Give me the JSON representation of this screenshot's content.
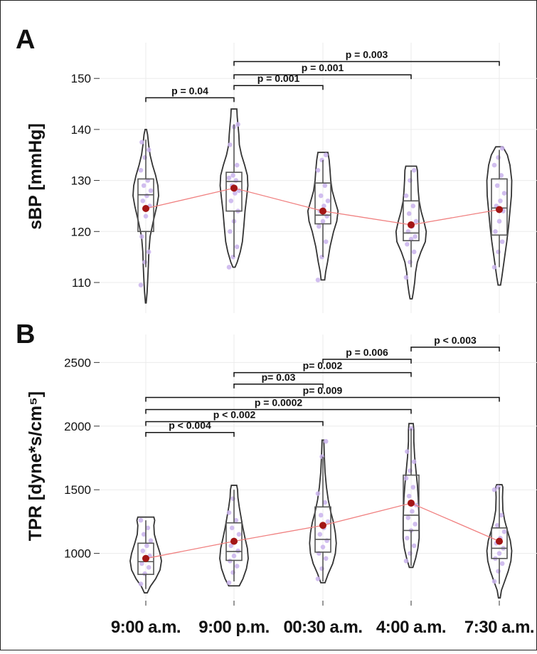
{
  "colors": {
    "violin_outline": "#333333",
    "box": "#555555",
    "points": "#c9b3ec",
    "mean_point": "#a31515",
    "mean_line": "#f08080",
    "grid": "#ebebeb"
  },
  "chart_data": [
    {
      "panel": "A",
      "type": "violin",
      "ylabel": "sBP [mmHg]",
      "xlabel": "",
      "ylim": [
        104,
        157
      ],
      "yticks": [
        110,
        120,
        130,
        140,
        150
      ],
      "yticklabels": [
        "110",
        "120",
        "130",
        "140",
        "150"
      ],
      "categories": [
        "9:00 a.m.",
        "9:00 p.m.",
        "00:30 a.m.",
        "4:00 a.m.",
        "7:30 a.m."
      ],
      "groups": [
        {
          "category": "9:00 a.m.",
          "min": 106,
          "max": 140,
          "q1": 120,
          "median": 127.2,
          "q3": 130.3,
          "whisker_low": 113,
          "whisker_high": 138,
          "mean": 124.5,
          "density": [
            [
              106,
              0.02
            ],
            [
              108,
              0.07
            ],
            [
              110,
              0.1
            ],
            [
              113,
              0.14
            ],
            [
              116,
              0.17
            ],
            [
              119,
              0.24
            ],
            [
              122,
              0.42
            ],
            [
              125,
              0.62
            ],
            [
              127,
              0.72
            ],
            [
              129,
              0.68
            ],
            [
              131,
              0.55
            ],
            [
              133,
              0.38
            ],
            [
              135,
              0.24
            ],
            [
              137,
              0.16
            ],
            [
              139,
              0.1
            ],
            [
              140,
              0.04
            ]
          ],
          "points": [
            109.5,
            114,
            116,
            119,
            123,
            125,
            126,
            127,
            128,
            129,
            130,
            132,
            134.5,
            136,
            137.5
          ]
        },
        {
          "category": "9:00 p.m.",
          "min": 113,
          "max": 144,
          "q1": 124,
          "median": 129.8,
          "q3": 131.6,
          "whisker_low": 115,
          "whisker_high": 141,
          "mean": 128.5,
          "density": [
            [
              113,
              0.06
            ],
            [
              114,
              0.18
            ],
            [
              116,
              0.35
            ],
            [
              118,
              0.47
            ],
            [
              121,
              0.55
            ],
            [
              124,
              0.62
            ],
            [
              127,
              0.72
            ],
            [
              129,
              0.78
            ],
            [
              131,
              0.75
            ],
            [
              133,
              0.6
            ],
            [
              135,
              0.42
            ],
            [
              137,
              0.3
            ],
            [
              139,
              0.27
            ],
            [
              141,
              0.22
            ],
            [
              142.5,
              0.18
            ],
            [
              144,
              0.16
            ]
          ],
          "points": [
            113,
            115,
            117,
            120,
            122,
            124,
            126,
            127.5,
            128,
            129,
            130,
            130.5,
            131,
            133,
            137,
            140.5,
            141
          ]
        },
        {
          "category": "00:30 a.m.",
          "min": 110.5,
          "max": 135.5,
          "q1": 121.5,
          "median": 123.2,
          "q3": 129.5,
          "whisker_low": 115,
          "whisker_high": 134,
          "mean": 124,
          "density": [
            [
              110.5,
              0.1
            ],
            [
              112,
              0.15
            ],
            [
              114,
              0.26
            ],
            [
              117,
              0.4
            ],
            [
              120,
              0.6
            ],
            [
              122,
              0.78
            ],
            [
              124,
              0.85
            ],
            [
              126,
              0.68
            ],
            [
              128,
              0.52
            ],
            [
              130,
              0.44
            ],
            [
              132,
              0.4
            ],
            [
              134,
              0.35
            ],
            [
              135.5,
              0.28
            ]
          ],
          "points": [
            110.5,
            115,
            118,
            121,
            122,
            123,
            124,
            125,
            126,
            127,
            129,
            132,
            134,
            135
          ]
        },
        {
          "category": "4:00 a.m.",
          "min": 106.8,
          "max": 132.8,
          "q1": 118.2,
          "median": 119.7,
          "q3": 126,
          "whisker_low": 113,
          "whisker_high": 132,
          "mean": 121.3,
          "density": [
            [
              106.8,
              0.06
            ],
            [
              108,
              0.12
            ],
            [
              110,
              0.2
            ],
            [
              112,
              0.25
            ],
            [
              114,
              0.35
            ],
            [
              116,
              0.55
            ],
            [
              118,
              0.8
            ],
            [
              120,
              0.85
            ],
            [
              122,
              0.72
            ],
            [
              124,
              0.56
            ],
            [
              126,
              0.45
            ],
            [
              128,
              0.4
            ],
            [
              130,
              0.37
            ],
            [
              132,
              0.35
            ],
            [
              132.8,
              0.3
            ]
          ],
          "points": [
            111,
            114,
            116,
            117.5,
            118.5,
            119,
            120,
            121,
            122,
            123.5,
            125,
            127,
            130,
            132
          ]
        },
        {
          "category": "7:30 a.m.",
          "min": 109.5,
          "max": 136.6,
          "q1": 119.3,
          "median": 124.6,
          "q3": 130.3,
          "whisker_low": 113,
          "whisker_high": 136,
          "mean": 124.3,
          "density": [
            [
              109.5,
              0.07
            ],
            [
              111,
              0.14
            ],
            [
              113,
              0.22
            ],
            [
              115,
              0.3
            ],
            [
              118,
              0.42
            ],
            [
              121,
              0.52
            ],
            [
              124,
              0.6
            ],
            [
              127,
              0.68
            ],
            [
              130,
              0.7
            ],
            [
              133,
              0.6
            ],
            [
              135,
              0.45
            ],
            [
              136.6,
              0.2
            ]
          ],
          "points": [
            113,
            116,
            118,
            120,
            122,
            124,
            125,
            126,
            127.5,
            129,
            131,
            133,
            134.5,
            136.3
          ]
        }
      ],
      "comparisons": [
        {
          "from": "9:00 a.m.",
          "to": "9:00 p.m.",
          "y": 146.2,
          "label": "p = 0.04"
        },
        {
          "from": "9:00 p.m.",
          "to": "00:30 a.m.",
          "y": 148.6,
          "label": "p = 0.001"
        },
        {
          "from": "9:00 p.m.",
          "to": "4:00 a.m.",
          "y": 150.7,
          "label": "p = 0.001"
        },
        {
          "from": "9:00 p.m.",
          "to": "7:30 a.m.",
          "y": 153.3,
          "label": "p = 0.003"
        }
      ]
    },
    {
      "panel": "B",
      "type": "violin",
      "ylabel": "TPR [dyne*s/cm⁵]",
      "xlabel": "",
      "ylim": [
        640,
        2720
      ],
      "yticks": [
        1000,
        1500,
        2000,
        2500
      ],
      "yticklabels": [
        "1000",
        "1500",
        "2000",
        "2500"
      ],
      "categories": [
        "9:00 a.m.",
        "9:00 p.m.",
        "00:30 a.m.",
        "4:00 a.m.",
        "7:30 a.m."
      ],
      "groups": [
        {
          "category": "9:00 a.m.",
          "min": 690,
          "max": 1285,
          "q1": 835,
          "median": 935,
          "q3": 1080,
          "whisker_low": 720,
          "whisker_high": 1260,
          "mean": 960,
          "density": [
            [
              690,
              0.08
            ],
            [
              740,
              0.25
            ],
            [
              800,
              0.55
            ],
            [
              870,
              0.8
            ],
            [
              940,
              0.88
            ],
            [
              1000,
              0.8
            ],
            [
              1080,
              0.62
            ],
            [
              1150,
              0.48
            ],
            [
              1220,
              0.45
            ],
            [
              1260,
              0.5
            ],
            [
              1285,
              0.45
            ]
          ],
          "points": [
            760,
            840,
            890,
            920,
            950,
            980,
            1020,
            1060,
            1100,
            1150,
            1200,
            1260
          ]
        },
        {
          "category": "9:00 p.m.",
          "min": 745,
          "max": 1535,
          "q1": 945,
          "median": 1015,
          "q3": 1240,
          "whisker_low": 780,
          "whisker_high": 1500,
          "mean": 1095,
          "density": [
            [
              745,
              0.3
            ],
            [
              800,
              0.5
            ],
            [
              880,
              0.7
            ],
            [
              960,
              0.8
            ],
            [
              1040,
              0.75
            ],
            [
              1120,
              0.62
            ],
            [
              1200,
              0.5
            ],
            [
              1280,
              0.4
            ],
            [
              1360,
              0.3
            ],
            [
              1440,
              0.22
            ],
            [
              1500,
              0.2
            ],
            [
              1535,
              0.15
            ]
          ],
          "points": [
            770,
            850,
            900,
            940,
            980,
            1020,
            1060,
            1100,
            1150,
            1200,
            1260,
            1320,
            1430
          ]
        },
        {
          "category": "00:30 a.m.",
          "min": 770,
          "max": 1890,
          "q1": 1010,
          "median": 1110,
          "q3": 1365,
          "whisker_low": 780,
          "whisker_high": 1760,
          "mean": 1220,
          "density": [
            [
              770,
              0.12
            ],
            [
              840,
              0.3
            ],
            [
              920,
              0.55
            ],
            [
              1000,
              0.7
            ],
            [
              1080,
              0.75
            ],
            [
              1160,
              0.7
            ],
            [
              1240,
              0.6
            ],
            [
              1320,
              0.45
            ],
            [
              1420,
              0.3
            ],
            [
              1520,
              0.2
            ],
            [
              1640,
              0.12
            ],
            [
              1760,
              0.08
            ],
            [
              1890,
              0.05
            ]
          ],
          "points": [
            800,
            880,
            960,
            1000,
            1050,
            1100,
            1150,
            1200,
            1250,
            1300,
            1400,
            1470,
            1760,
            1880
          ]
        },
        {
          "category": "4:00 a.m.",
          "min": 890,
          "max": 2020,
          "q1": 1180,
          "median": 1300,
          "q3": 1615,
          "whisker_low": 900,
          "whisker_high": 1980,
          "mean": 1395,
          "density": [
            [
              890,
              0.1
            ],
            [
              960,
              0.25
            ],
            [
              1040,
              0.38
            ],
            [
              1120,
              0.45
            ],
            [
              1200,
              0.45
            ],
            [
              1280,
              0.45
            ],
            [
              1360,
              0.42
            ],
            [
              1440,
              0.4
            ],
            [
              1540,
              0.35
            ],
            [
              1640,
              0.28
            ],
            [
              1760,
              0.2
            ],
            [
              1880,
              0.15
            ],
            [
              1970,
              0.15
            ],
            [
              2020,
              0.12
            ]
          ],
          "points": [
            940,
            1000,
            1060,
            1120,
            1180,
            1230,
            1280,
            1330,
            1380,
            1450,
            1520,
            1590,
            1650,
            1720,
            1800,
            1980
          ]
        },
        {
          "category": "7:30 a.m.",
          "min": 650,
          "max": 1540,
          "q1": 960,
          "median": 1040,
          "q3": 1200,
          "whisker_low": 760,
          "whisker_high": 1520,
          "mean": 1095,
          "density": [
            [
              650,
              0.05
            ],
            [
              710,
              0.12
            ],
            [
              780,
              0.3
            ],
            [
              860,
              0.5
            ],
            [
              940,
              0.65
            ],
            [
              1020,
              0.7
            ],
            [
              1100,
              0.62
            ],
            [
              1180,
              0.45
            ],
            [
              1260,
              0.3
            ],
            [
              1340,
              0.2
            ],
            [
              1440,
              0.18
            ],
            [
              1520,
              0.2
            ],
            [
              1540,
              0.15
            ]
          ],
          "points": [
            780,
            860,
            920,
            960,
            1000,
            1040,
            1080,
            1120,
            1170,
            1220,
            1300,
            1500,
            1520
          ]
        }
      ],
      "comparisons": [
        {
          "from": "9:00 a.m.",
          "to": "9:00 p.m.",
          "y": 1950,
          "label": "p < 0.004"
        },
        {
          "from": "9:00 a.m.",
          "to": "00:30 a.m.",
          "y": 2035,
          "label": "p < 0.002"
        },
        {
          "from": "9:00 a.m.",
          "to": "4:00 a.m.",
          "y": 2130,
          "label": "p = 0.0002"
        },
        {
          "from": "9:00 a.m.",
          "to": "7:30 a.m.",
          "y": 2225,
          "label": "p= 0.009"
        },
        {
          "from": "9:00 p.m.",
          "to": "00:30 a.m.",
          "y": 2330,
          "label": "p= 0.03"
        },
        {
          "from": "9:00 p.m.",
          "to": "4:00 a.m.",
          "y": 2420,
          "label": "p= 0.002"
        },
        {
          "from": "00:30 a.m.",
          "to": "4:00 a.m.",
          "y": 2525,
          "label": "p = 0.006"
        },
        {
          "from": "4:00 a.m.",
          "to": "7:30 a.m.",
          "y": 2620,
          "label": "p < 0.003"
        }
      ]
    }
  ]
}
